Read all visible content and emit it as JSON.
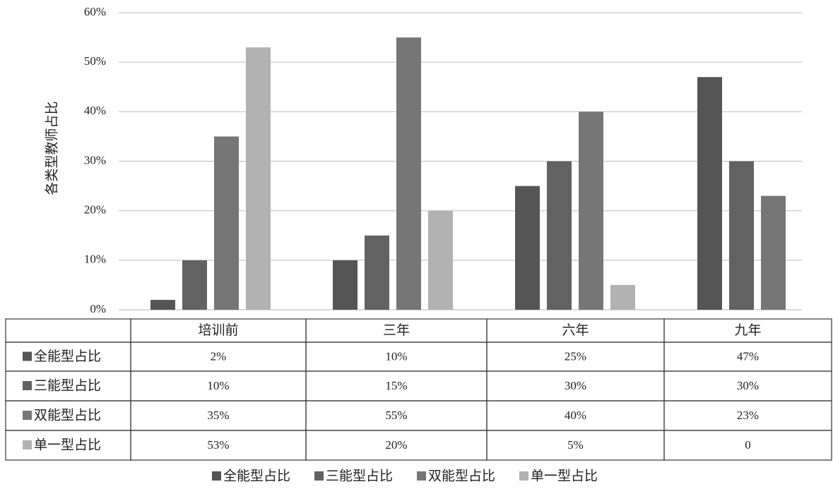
{
  "chart_data": {
    "type": "bar",
    "y_label": "各类型教师占比",
    "categories": [
      "培训前",
      "三年",
      "六年",
      "九年"
    ],
    "series": [
      {
        "name": "全能型占比",
        "color": "#555555",
        "values": [
          2,
          10,
          25,
          47
        ],
        "value_labels": [
          "2%",
          "10%",
          "25%",
          "47%"
        ]
      },
      {
        "name": "三能型占比",
        "color": "#626262",
        "values": [
          10,
          15,
          30,
          30
        ],
        "value_labels": [
          "10%",
          "15%",
          "30%",
          "30%"
        ]
      },
      {
        "name": "双能型占比",
        "color": "#767676",
        "values": [
          35,
          55,
          40,
          23
        ],
        "value_labels": [
          "35%",
          "55%",
          "40%",
          "23%"
        ]
      },
      {
        "name": "单一型占比",
        "color": "#b2b2b2",
        "values": [
          53,
          20,
          5,
          0
        ],
        "value_labels": [
          "53%",
          "20%",
          "5%",
          "0"
        ]
      }
    ],
    "ylim": [
      0,
      60
    ],
    "yticks": [
      {
        "value": 0,
        "label": "0%"
      },
      {
        "value": 10,
        "label": "10%"
      },
      {
        "value": 20,
        "label": "20%"
      },
      {
        "value": 30,
        "label": "30%"
      },
      {
        "value": 40,
        "label": "40%"
      },
      {
        "value": 50,
        "label": "50%"
      },
      {
        "value": 60,
        "label": "60%"
      }
    ],
    "grid": true
  }
}
